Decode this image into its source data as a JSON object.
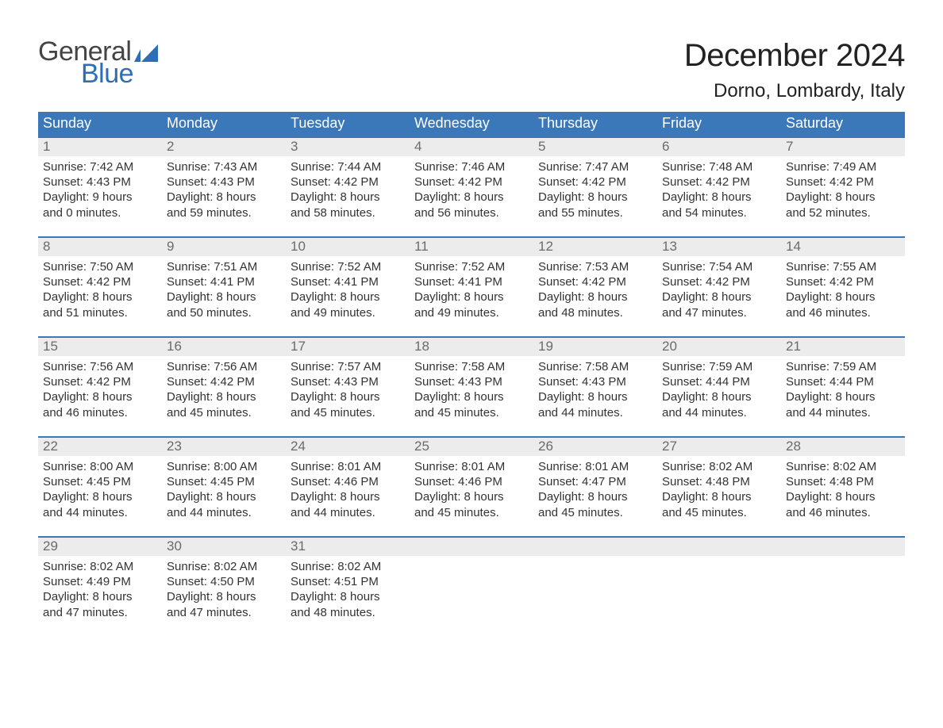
{
  "logo": {
    "word1": "General",
    "word2": "Blue",
    "text_color": "#444444",
    "accent_color": "#2d6fb5"
  },
  "header": {
    "title": "December 2024",
    "location": "Dorno, Lombardy, Italy"
  },
  "calendar": {
    "header_bg": "#3a78b9",
    "header_text_color": "#ffffff",
    "week_border_color": "#3a78b9",
    "daynum_bg": "#ececec",
    "daynum_color": "#6b6b6b",
    "body_text_color": "#333333",
    "columns": [
      "Sunday",
      "Monday",
      "Tuesday",
      "Wednesday",
      "Thursday",
      "Friday",
      "Saturday"
    ],
    "weeks": [
      [
        {
          "n": "1",
          "sunrise": "Sunrise: 7:42 AM",
          "sunset": "Sunset: 4:43 PM",
          "dl1": "Daylight: 9 hours",
          "dl2": "and 0 minutes."
        },
        {
          "n": "2",
          "sunrise": "Sunrise: 7:43 AM",
          "sunset": "Sunset: 4:43 PM",
          "dl1": "Daylight: 8 hours",
          "dl2": "and 59 minutes."
        },
        {
          "n": "3",
          "sunrise": "Sunrise: 7:44 AM",
          "sunset": "Sunset: 4:42 PM",
          "dl1": "Daylight: 8 hours",
          "dl2": "and 58 minutes."
        },
        {
          "n": "4",
          "sunrise": "Sunrise: 7:46 AM",
          "sunset": "Sunset: 4:42 PM",
          "dl1": "Daylight: 8 hours",
          "dl2": "and 56 minutes."
        },
        {
          "n": "5",
          "sunrise": "Sunrise: 7:47 AM",
          "sunset": "Sunset: 4:42 PM",
          "dl1": "Daylight: 8 hours",
          "dl2": "and 55 minutes."
        },
        {
          "n": "6",
          "sunrise": "Sunrise: 7:48 AM",
          "sunset": "Sunset: 4:42 PM",
          "dl1": "Daylight: 8 hours",
          "dl2": "and 54 minutes."
        },
        {
          "n": "7",
          "sunrise": "Sunrise: 7:49 AM",
          "sunset": "Sunset: 4:42 PM",
          "dl1": "Daylight: 8 hours",
          "dl2": "and 52 minutes."
        }
      ],
      [
        {
          "n": "8",
          "sunrise": "Sunrise: 7:50 AM",
          "sunset": "Sunset: 4:42 PM",
          "dl1": "Daylight: 8 hours",
          "dl2": "and 51 minutes."
        },
        {
          "n": "9",
          "sunrise": "Sunrise: 7:51 AM",
          "sunset": "Sunset: 4:41 PM",
          "dl1": "Daylight: 8 hours",
          "dl2": "and 50 minutes."
        },
        {
          "n": "10",
          "sunrise": "Sunrise: 7:52 AM",
          "sunset": "Sunset: 4:41 PM",
          "dl1": "Daylight: 8 hours",
          "dl2": "and 49 minutes."
        },
        {
          "n": "11",
          "sunrise": "Sunrise: 7:52 AM",
          "sunset": "Sunset: 4:41 PM",
          "dl1": "Daylight: 8 hours",
          "dl2": "and 49 minutes."
        },
        {
          "n": "12",
          "sunrise": "Sunrise: 7:53 AM",
          "sunset": "Sunset: 4:42 PM",
          "dl1": "Daylight: 8 hours",
          "dl2": "and 48 minutes."
        },
        {
          "n": "13",
          "sunrise": "Sunrise: 7:54 AM",
          "sunset": "Sunset: 4:42 PM",
          "dl1": "Daylight: 8 hours",
          "dl2": "and 47 minutes."
        },
        {
          "n": "14",
          "sunrise": "Sunrise: 7:55 AM",
          "sunset": "Sunset: 4:42 PM",
          "dl1": "Daylight: 8 hours",
          "dl2": "and 46 minutes."
        }
      ],
      [
        {
          "n": "15",
          "sunrise": "Sunrise: 7:56 AM",
          "sunset": "Sunset: 4:42 PM",
          "dl1": "Daylight: 8 hours",
          "dl2": "and 46 minutes."
        },
        {
          "n": "16",
          "sunrise": "Sunrise: 7:56 AM",
          "sunset": "Sunset: 4:42 PM",
          "dl1": "Daylight: 8 hours",
          "dl2": "and 45 minutes."
        },
        {
          "n": "17",
          "sunrise": "Sunrise: 7:57 AM",
          "sunset": "Sunset: 4:43 PM",
          "dl1": "Daylight: 8 hours",
          "dl2": "and 45 minutes."
        },
        {
          "n": "18",
          "sunrise": "Sunrise: 7:58 AM",
          "sunset": "Sunset: 4:43 PM",
          "dl1": "Daylight: 8 hours",
          "dl2": "and 45 minutes."
        },
        {
          "n": "19",
          "sunrise": "Sunrise: 7:58 AM",
          "sunset": "Sunset: 4:43 PM",
          "dl1": "Daylight: 8 hours",
          "dl2": "and 44 minutes."
        },
        {
          "n": "20",
          "sunrise": "Sunrise: 7:59 AM",
          "sunset": "Sunset: 4:44 PM",
          "dl1": "Daylight: 8 hours",
          "dl2": "and 44 minutes."
        },
        {
          "n": "21",
          "sunrise": "Sunrise: 7:59 AM",
          "sunset": "Sunset: 4:44 PM",
          "dl1": "Daylight: 8 hours",
          "dl2": "and 44 minutes."
        }
      ],
      [
        {
          "n": "22",
          "sunrise": "Sunrise: 8:00 AM",
          "sunset": "Sunset: 4:45 PM",
          "dl1": "Daylight: 8 hours",
          "dl2": "and 44 minutes."
        },
        {
          "n": "23",
          "sunrise": "Sunrise: 8:00 AM",
          "sunset": "Sunset: 4:45 PM",
          "dl1": "Daylight: 8 hours",
          "dl2": "and 44 minutes."
        },
        {
          "n": "24",
          "sunrise": "Sunrise: 8:01 AM",
          "sunset": "Sunset: 4:46 PM",
          "dl1": "Daylight: 8 hours",
          "dl2": "and 44 minutes."
        },
        {
          "n": "25",
          "sunrise": "Sunrise: 8:01 AM",
          "sunset": "Sunset: 4:46 PM",
          "dl1": "Daylight: 8 hours",
          "dl2": "and 45 minutes."
        },
        {
          "n": "26",
          "sunrise": "Sunrise: 8:01 AM",
          "sunset": "Sunset: 4:47 PM",
          "dl1": "Daylight: 8 hours",
          "dl2": "and 45 minutes."
        },
        {
          "n": "27",
          "sunrise": "Sunrise: 8:02 AM",
          "sunset": "Sunset: 4:48 PM",
          "dl1": "Daylight: 8 hours",
          "dl2": "and 45 minutes."
        },
        {
          "n": "28",
          "sunrise": "Sunrise: 8:02 AM",
          "sunset": "Sunset: 4:48 PM",
          "dl1": "Daylight: 8 hours",
          "dl2": "and 46 minutes."
        }
      ],
      [
        {
          "n": "29",
          "sunrise": "Sunrise: 8:02 AM",
          "sunset": "Sunset: 4:49 PM",
          "dl1": "Daylight: 8 hours",
          "dl2": "and 47 minutes."
        },
        {
          "n": "30",
          "sunrise": "Sunrise: 8:02 AM",
          "sunset": "Sunset: 4:50 PM",
          "dl1": "Daylight: 8 hours",
          "dl2": "and 47 minutes."
        },
        {
          "n": "31",
          "sunrise": "Sunrise: 8:02 AM",
          "sunset": "Sunset: 4:51 PM",
          "dl1": "Daylight: 8 hours",
          "dl2": "and 48 minutes."
        },
        {
          "empty": true
        },
        {
          "empty": true
        },
        {
          "empty": true
        },
        {
          "empty": true
        }
      ]
    ]
  }
}
